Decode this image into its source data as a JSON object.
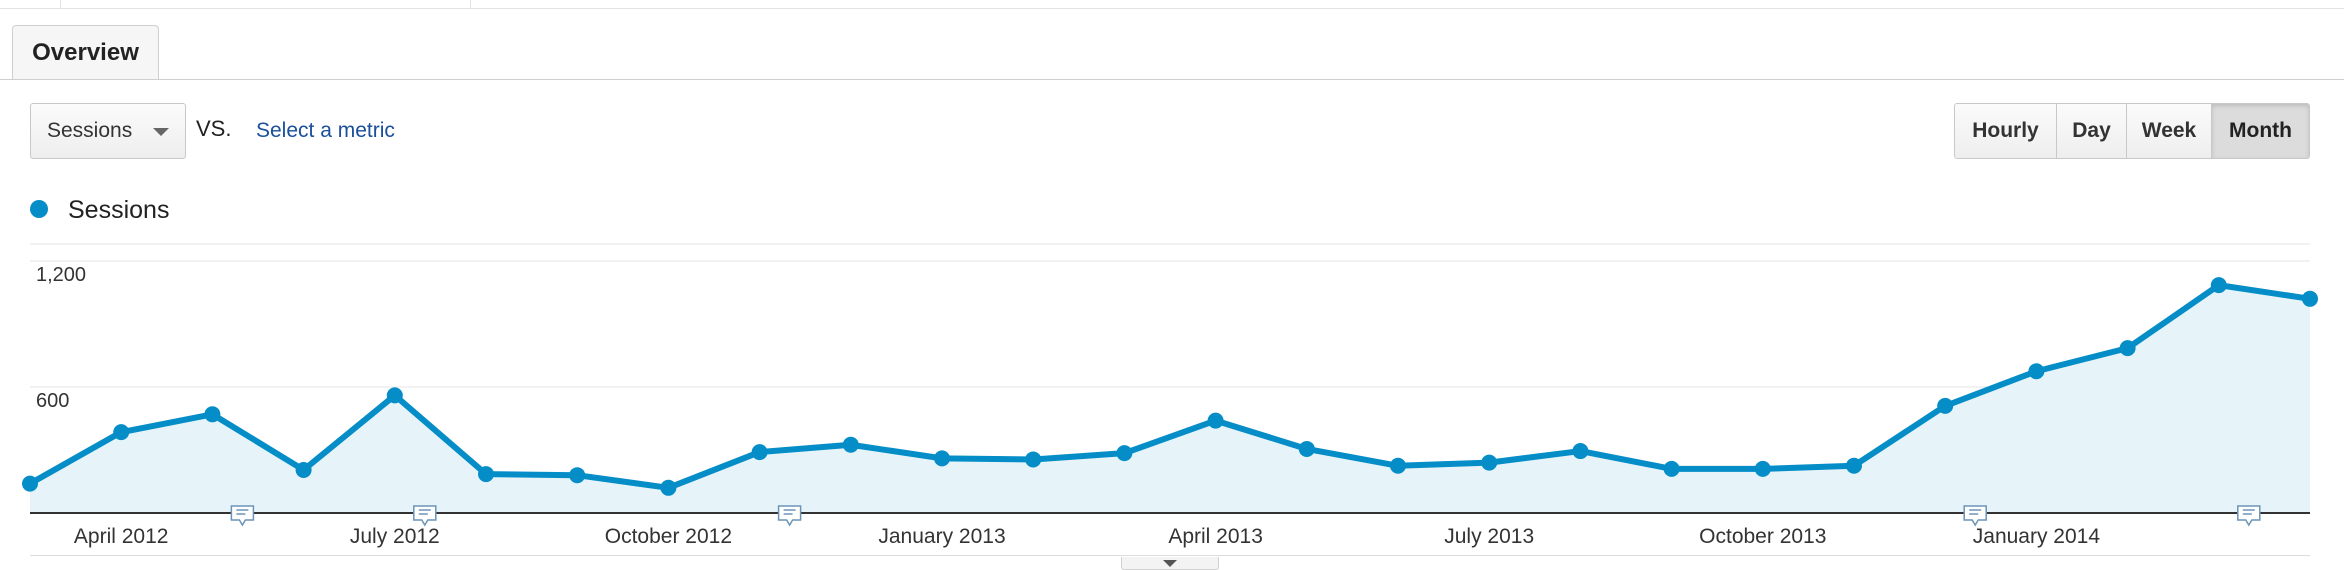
{
  "tabs": [
    {
      "label": "Overview"
    }
  ],
  "controls": {
    "metric_select": "Sessions",
    "vs_label": "VS.",
    "select_metric_link": "Select a metric",
    "granularity": [
      "Hourly",
      "Day",
      "Week",
      "Month"
    ],
    "granularity_active": "Month"
  },
  "chart_data": {
    "type": "area",
    "legend_placement": "top-left",
    "grid": true,
    "series": [
      {
        "name": "Sessions",
        "color": "#058dc7",
        "fill_color": "#e6f4fa",
        "values": [
          140,
          385,
          470,
          205,
          560,
          185,
          180,
          120,
          290,
          325,
          260,
          255,
          285,
          440,
          305,
          225,
          240,
          295,
          210,
          210,
          225,
          510,
          675,
          785,
          1085,
          1020
        ]
      }
    ],
    "ylim": [
      0,
      1200
    ],
    "yticks": [
      {
        "value": 1200,
        "label": "1,200"
      },
      {
        "value": 600,
        "label": "600"
      }
    ],
    "x_labels": [
      {
        "index": 1,
        "label": "April 2012"
      },
      {
        "index": 4,
        "label": "July 2012"
      },
      {
        "index": 7,
        "label": "October 2012"
      },
      {
        "index": 10,
        "label": "January 2013"
      },
      {
        "index": 13,
        "label": "April 2013"
      },
      {
        "index": 16,
        "label": "July 2013"
      },
      {
        "index": 19,
        "label": "October 2013"
      },
      {
        "index": 22,
        "label": "January 2014"
      }
    ],
    "annotation_markers": [
      2,
      4,
      8,
      21,
      24
    ],
    "annotation_icon": "annotation-note-icon"
  }
}
